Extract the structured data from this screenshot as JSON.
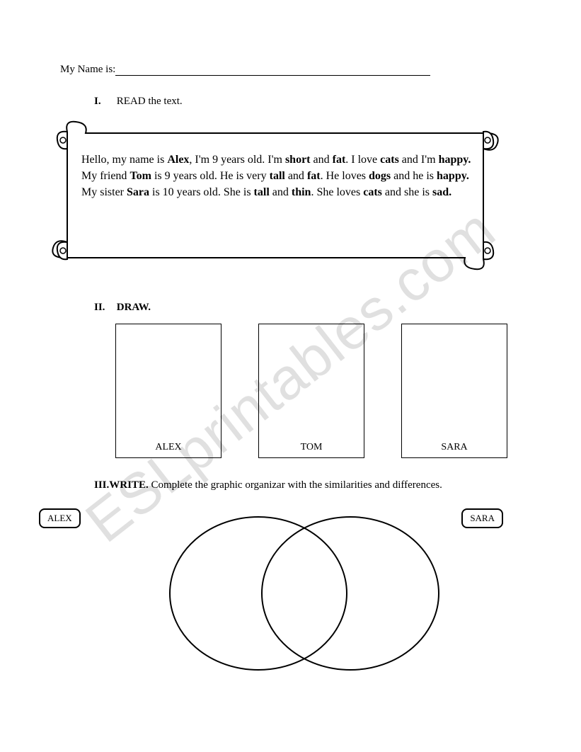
{
  "watermark": "ESLprintables.com",
  "nameLine": {
    "label": "My Name is:"
  },
  "section1": {
    "num": "I.",
    "title": "READ the text.",
    "paragraphs": [
      {
        "segments": [
          {
            "t": "Hello, my name is ",
            "b": false
          },
          {
            "t": "Alex",
            "b": true
          },
          {
            "t": ", I'm 9 years old. I'm ",
            "b": false
          },
          {
            "t": "short",
            "b": true
          },
          {
            "t": " and ",
            "b": false
          },
          {
            "t": "fat",
            "b": true
          },
          {
            "t": ". I love ",
            "b": false
          },
          {
            "t": "cats",
            "b": true
          },
          {
            "t": " and I'm ",
            "b": false
          },
          {
            "t": "happy.",
            "b": true
          }
        ]
      },
      {
        "segments": [
          {
            "t": "My friend ",
            "b": false
          },
          {
            "t": "Tom",
            "b": true
          },
          {
            "t": " is 9 years old. He is very ",
            "b": false
          },
          {
            "t": "tall",
            "b": true
          },
          {
            "t": " and ",
            "b": false
          },
          {
            "t": "fat",
            "b": true
          },
          {
            "t": ". He loves ",
            "b": false
          },
          {
            "t": "dogs",
            "b": true
          },
          {
            "t": " and he is ",
            "b": false
          },
          {
            "t": "happy.",
            "b": true
          }
        ]
      },
      {
        "segments": [
          {
            "t": "My sister ",
            "b": false
          },
          {
            "t": "Sara",
            "b": true
          },
          {
            "t": " is 10 years old. She is ",
            "b": false
          },
          {
            "t": "tall",
            "b": true
          },
          {
            "t": " and ",
            "b": false
          },
          {
            "t": "thin",
            "b": true
          },
          {
            "t": ". She loves ",
            "b": false
          },
          {
            "t": "cats",
            "b": true
          },
          {
            "t": " and she is ",
            "b": false
          },
          {
            "t": "sad.",
            "b": true
          }
        ]
      }
    ]
  },
  "section2": {
    "num": "II.",
    "title": "DRAW.",
    "boxes": [
      "ALEX",
      "TOM",
      "SARA"
    ]
  },
  "section3": {
    "num": "III.",
    "titleBold": "WRITE.",
    "titleRest": " Complete the graphic organizar with the similarities and differences.",
    "leftLabel": "ALEX",
    "rightLabel": "SARA"
  },
  "styling": {
    "pageWidth": 821,
    "pageHeight": 1062,
    "background": "#ffffff",
    "textColor": "#000000",
    "borderColor": "#000000",
    "watermarkColor": "rgba(0,0,0,0.12)",
    "bodyFontSize": 15,
    "scrollFontSize": 16,
    "drawBox": {
      "width": 150,
      "height": 190,
      "gap": 52
    },
    "vennCircle": {
      "r": 110,
      "stroke": "#000000",
      "strokeWidth": 2
    }
  }
}
